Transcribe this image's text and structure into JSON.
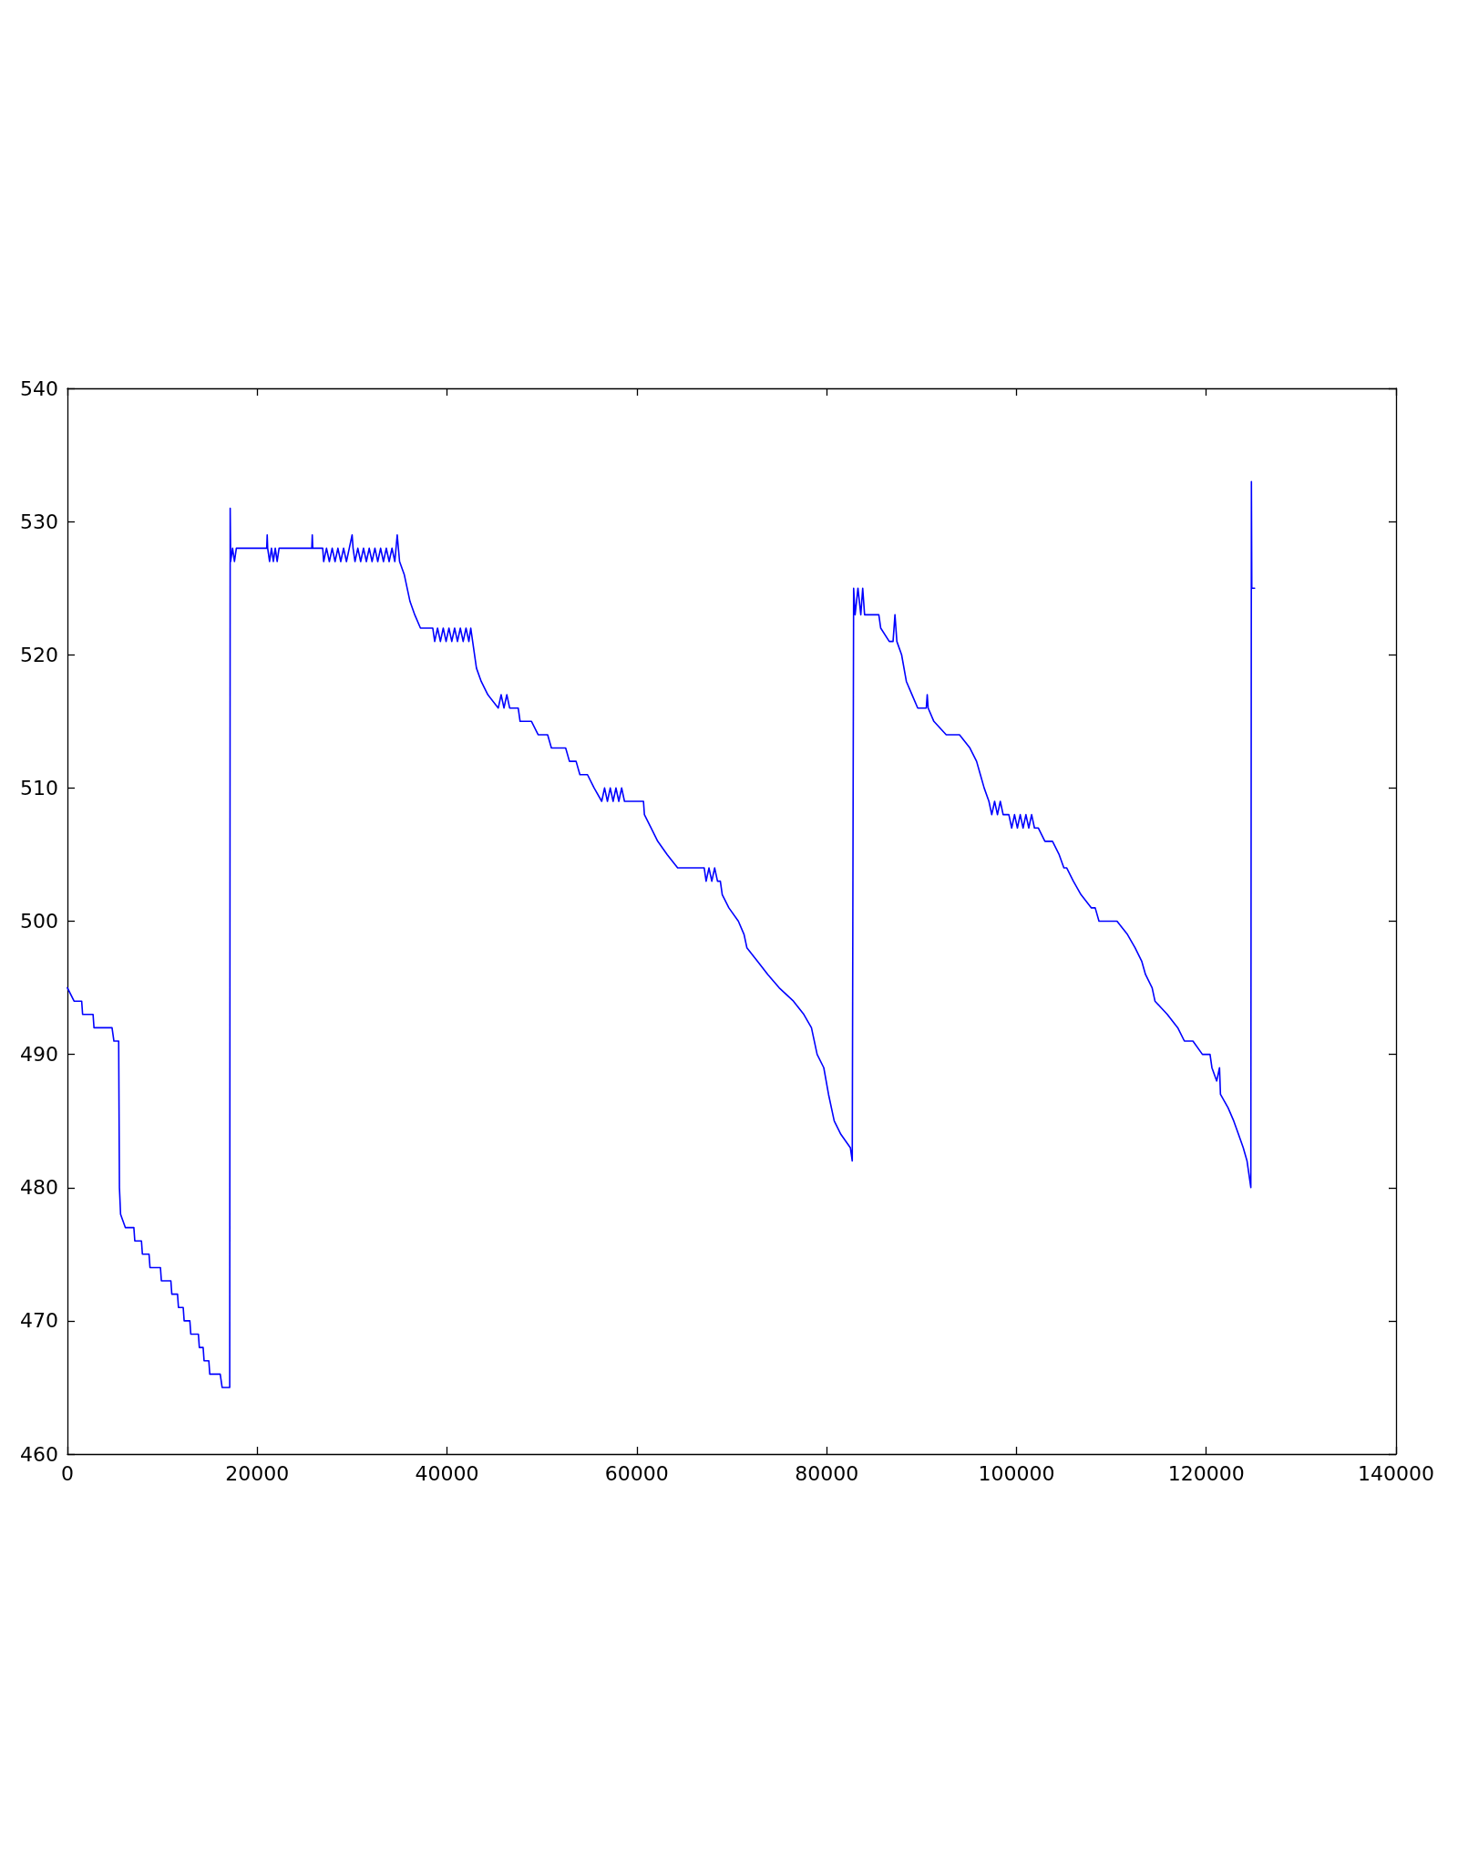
{
  "chart_data": {
    "type": "line",
    "x": [
      0,
      700,
      1500,
      1600,
      2700,
      2800,
      4200,
      4700,
      4900,
      5400,
      5480,
      5600,
      6100,
      7000,
      7100,
      7800,
      7900,
      8600,
      8700,
      9800,
      9900,
      10900,
      11000,
      11600,
      11700,
      12200,
      12300,
      12900,
      13000,
      13800,
      13900,
      14300,
      14400,
      14900,
      15000,
      16100,
      16300,
      17100,
      17150,
      17200,
      17400,
      17600,
      17800,
      21000,
      21050,
      21100,
      21300,
      21500,
      21700,
      21900,
      22100,
      22300,
      25750,
      25800,
      25850,
      26900,
      27000,
      27300,
      27600,
      27900,
      28200,
      28500,
      28800,
      29100,
      29400,
      29700,
      30000,
      30100,
      30300,
      30600,
      30900,
      31200,
      31500,
      31800,
      32100,
      32400,
      32700,
      33000,
      33300,
      33600,
      33900,
      34200,
      34500,
      34750,
      35000,
      35500,
      36100,
      36600,
      37200,
      38500,
      38700,
      39000,
      39300,
      39600,
      39900,
      40200,
      40500,
      40800,
      41100,
      41400,
      41700,
      42000,
      42300,
      42500,
      43100,
      43600,
      44300,
      45400,
      45700,
      46000,
      46300,
      46600,
      47500,
      47700,
      48900,
      49600,
      50600,
      51000,
      52500,
      52900,
      53600,
      54000,
      54800,
      55500,
      56300,
      56600,
      56900,
      57200,
      57500,
      57800,
      58100,
      58400,
      58700,
      60700,
      60800,
      61500,
      62200,
      63200,
      64300,
      65800,
      67100,
      67300,
      67600,
      67900,
      68200,
      68500,
      68800,
      69000,
      69700,
      70700,
      71300,
      71600,
      72700,
      73800,
      75000,
      76500,
      77600,
      78400,
      79000,
      79700,
      80200,
      80800,
      81500,
      82500,
      82700,
      82845,
      83000,
      83300,
      83600,
      83800,
      84000,
      85500,
      85700,
      86600,
      87000,
      87200,
      87400,
      87900,
      88400,
      89000,
      89600,
      90500,
      90600,
      90700,
      91300,
      92600,
      94000,
      95100,
      95800,
      96200,
      96600,
      97100,
      97400,
      97700,
      98000,
      98300,
      98600,
      99200,
      99500,
      99800,
      100100,
      100400,
      100700,
      101000,
      101300,
      101600,
      101900,
      102300,
      103000,
      103800,
      104500,
      105000,
      105300,
      106000,
      106800,
      107900,
      108300,
      108700,
      110600,
      111700,
      112500,
      113200,
      113600,
      114300,
      114600,
      115900,
      117000,
      117700,
      118600,
      119600,
      120400,
      120600,
      121100,
      121400,
      121500,
      122300,
      122900,
      123400,
      123900,
      124300,
      124700,
      124760,
      124800,
      125100
    ],
    "values": [
      495,
      494,
      494,
      493,
      493,
      492,
      492,
      492,
      491,
      491,
      480,
      478,
      477,
      477,
      476,
      476,
      475,
      475,
      474,
      474,
      473,
      473,
      472,
      472,
      471,
      471,
      470,
      470,
      469,
      469,
      468,
      468,
      467,
      467,
      466,
      466,
      465,
      465,
      531,
      527,
      528,
      527,
      528,
      528,
      529,
      528,
      527,
      528,
      527,
      528,
      527,
      528,
      528,
      529,
      528,
      528,
      527,
      528,
      527,
      528,
      527,
      528,
      527,
      528,
      527,
      528,
      529,
      528,
      527,
      528,
      527,
      528,
      527,
      528,
      527,
      528,
      527,
      528,
      527,
      528,
      527,
      528,
      527,
      529,
      527,
      526,
      524,
      523,
      522,
      522,
      521,
      522,
      521,
      522,
      521,
      522,
      521,
      522,
      521,
      522,
      521,
      522,
      521,
      522,
      519,
      518,
      517,
      516,
      517,
      516,
      517,
      516,
      516,
      515,
      515,
      514,
      514,
      513,
      513,
      512,
      512,
      511,
      511,
      510,
      509,
      510,
      509,
      510,
      509,
      510,
      509,
      510,
      509,
      509,
      508,
      507,
      506,
      505,
      504,
      504,
      504,
      503,
      504,
      503,
      504,
      503,
      503,
      502,
      501,
      500,
      499,
      498,
      497,
      496,
      495,
      494,
      493,
      492,
      490,
      489,
      487,
      485,
      484,
      483,
      482,
      525,
      523,
      525,
      523,
      525,
      523,
      523,
      522,
      521,
      521,
      523,
      521,
      520,
      518,
      517,
      516,
      516,
      517,
      516,
      515,
      514,
      514,
      513,
      512,
      511,
      510,
      509,
      508,
      509,
      508,
      509,
      508,
      508,
      507,
      508,
      507,
      508,
      507,
      508,
      507,
      508,
      507,
      507,
      506,
      506,
      505,
      504,
      504,
      503,
      502,
      501,
      501,
      500,
      500,
      499,
      498,
      497,
      496,
      495,
      494,
      493,
      492,
      491,
      491,
      490,
      490,
      489,
      488,
      489,
      487,
      486,
      485,
      484,
      483,
      482,
      480,
      533,
      525,
      525
    ],
    "color": "#0000ff",
    "xlim": [
      0,
      140000
    ],
    "xticks": [
      0,
      20000,
      40000,
      60000,
      80000,
      100000,
      120000,
      140000
    ],
    "ylim": [
      460,
      540
    ],
    "yticks": [
      460,
      470,
      480,
      490,
      500,
      510,
      520,
      530,
      540
    ],
    "grid": false,
    "marker": "none",
    "line_style": "solid"
  }
}
